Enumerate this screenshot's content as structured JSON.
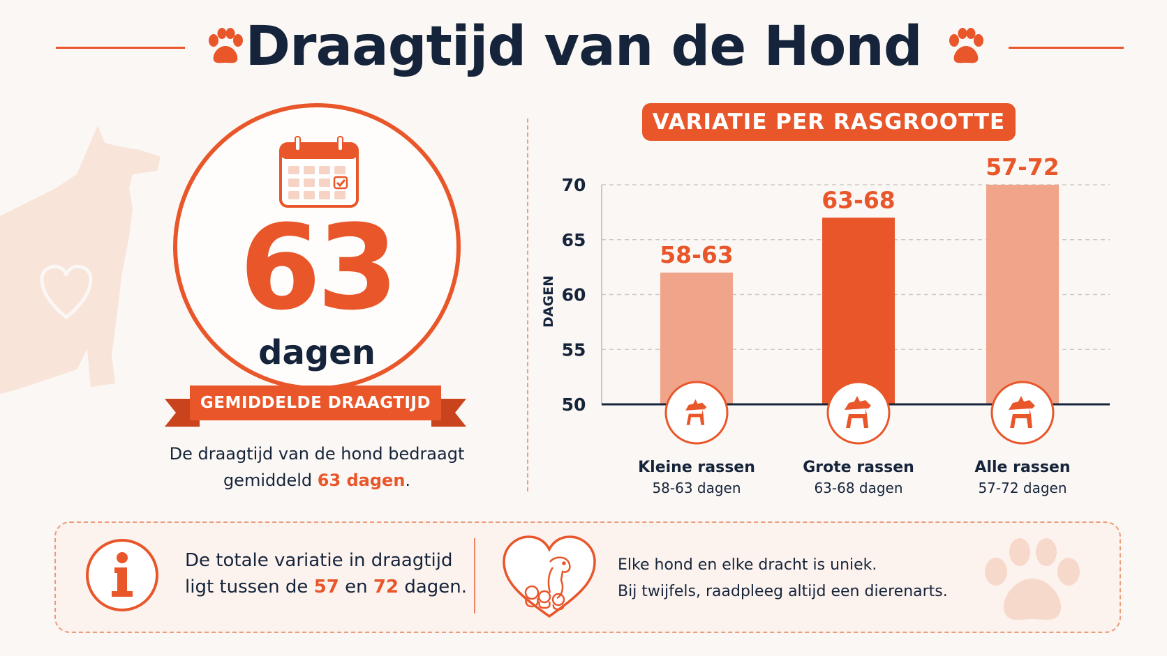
{
  "header": {
    "title": "Draagtijd van de Hond"
  },
  "summary": {
    "number": "63",
    "unit": "dagen",
    "ribbon": "GEMIDDELDE DRAAGTIJD",
    "desc_line1": "De draagtijd van de hond bedraagt",
    "desc_pre": "gemiddeld ",
    "desc_hl": "63 dagen",
    "desc_post": "."
  },
  "chart_badge": "VARIATIE PER RASGROOTTE",
  "chart_data": {
    "type": "bar",
    "ylabel": "DAGEN",
    "ylim": [
      50,
      70
    ],
    "yticks": [
      50,
      55,
      60,
      65,
      70
    ],
    "grid": true,
    "categories": [
      "Kleine rassen",
      "Grote rassen",
      "Alle rassen"
    ],
    "subtitles": [
      "58-63 dagen",
      "63-68 dagen",
      "57-72 dagen"
    ],
    "values": [
      62,
      67,
      70
    ],
    "data_labels": [
      "58-63",
      "63-68",
      "57-72"
    ],
    "colors": [
      "#f0a48a",
      "#e8562a",
      "#f0a48a"
    ]
  },
  "info": {
    "icon": "info-icon",
    "line1": "De totale variatie in draagtijd",
    "line2_pre": "ligt tussen de ",
    "num1": "57",
    "mid": " en ",
    "num2": "72",
    "line2_post": " dagen."
  },
  "tip": {
    "icon": "heart-dogs-icon",
    "line1": "Elke hond en elke dracht is uniek.",
    "line2": "Bij twijfels, raadpleeg altijd een dierenarts."
  },
  "colors": {
    "accent": "#e8562a",
    "light": "#f0a48a",
    "navy": "#15243a"
  }
}
